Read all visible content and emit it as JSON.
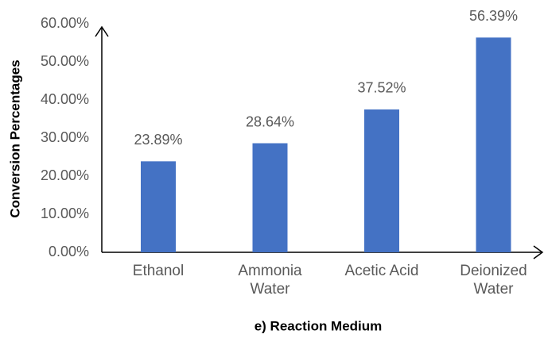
{
  "chart_data": {
    "type": "bar",
    "x_label": "e) Reaction Medium",
    "y_label": "Conversion Percentages",
    "categories": [
      "Ethanol",
      "Ammonia Water",
      "Acetic Acid",
      "Deionized Water"
    ],
    "values": [
      23.89,
      28.64,
      37.52,
      56.39
    ],
    "value_labels": [
      "23.89%",
      "28.64%",
      "37.52%",
      "56.39%"
    ],
    "color": "#4472c4",
    "ylim": [
      0,
      60
    ],
    "yticks": [
      {
        "value": 0,
        "label": "0.00%"
      },
      {
        "value": 10,
        "label": "10.00%"
      },
      {
        "value": 20,
        "label": "20.00%"
      },
      {
        "value": 30,
        "label": "30.00%"
      },
      {
        "value": 40,
        "label": "40.00%"
      },
      {
        "value": 50,
        "label": "50.00%"
      },
      {
        "value": 60,
        "label": "60.00%"
      }
    ],
    "grid": false
  }
}
